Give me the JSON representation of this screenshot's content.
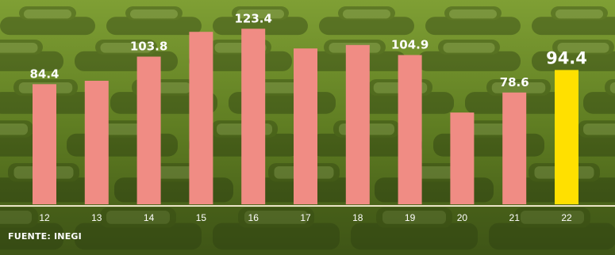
{
  "chart_data": {
    "type": "bar",
    "categories": [
      "12",
      "13",
      "14",
      "15",
      "16",
      "17",
      "18",
      "19",
      "20",
      "21",
      "22"
    ],
    "values": [
      84.4,
      86.8,
      103.8,
      121.2,
      123.4,
      109.5,
      112.0,
      104.9,
      64.5,
      78.6,
      94.4
    ],
    "data_labels": [
      "84.4",
      "",
      "103.8",
      "",
      "123.4",
      "",
      "",
      "104.9",
      "",
      "78.6",
      "94.4"
    ],
    "highlight_index": 10,
    "ylim": [
      0,
      128
    ],
    "grid": false,
    "colors": {
      "bar": "#f08c84",
      "highlight": "#ffe000",
      "background": "#5f7d24"
    }
  },
  "source": "FUENTE: INEGI"
}
